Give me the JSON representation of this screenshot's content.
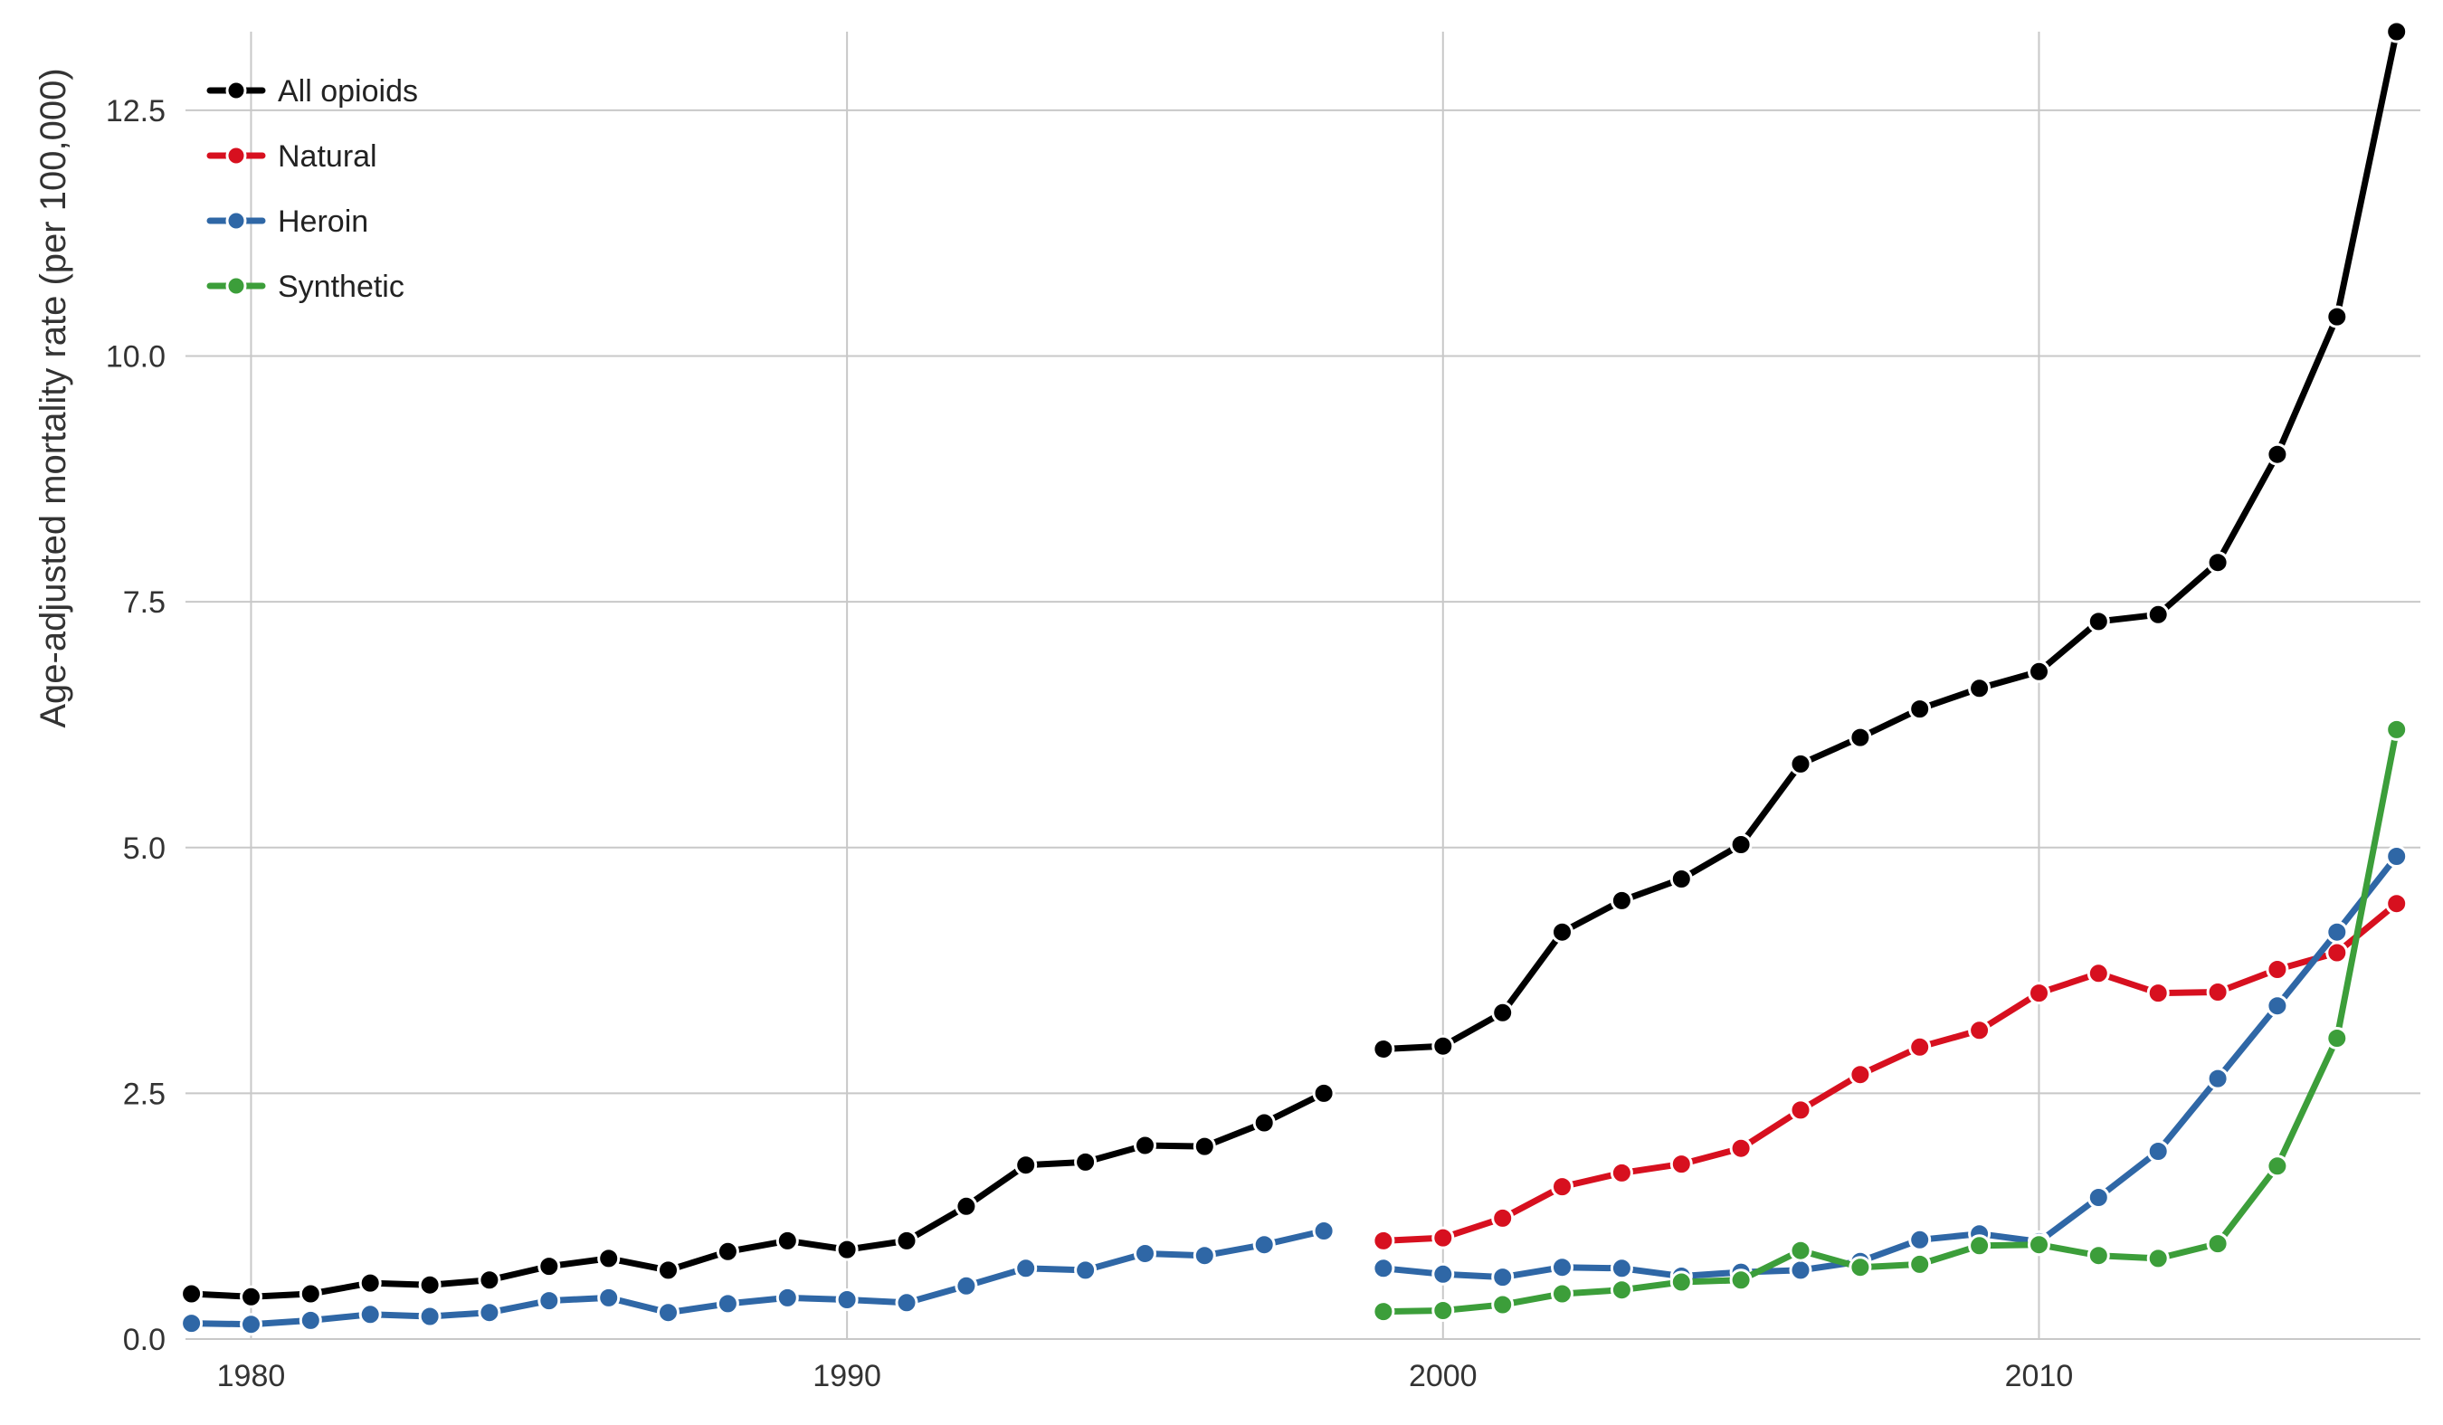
{
  "chart_data": {
    "type": "line",
    "title": "",
    "xlabel": "",
    "ylabel": "Age-adjusted mortality rate (per 100,000)",
    "xlim": [
      1978.9,
      2016.4
    ],
    "ylim": [
      0,
      13.3
    ],
    "x_ticks": [
      1980,
      1990,
      2000,
      2010
    ],
    "y_ticks": [
      0.0,
      2.5,
      5.0,
      7.5,
      10.0,
      12.5
    ],
    "x_tick_labels": [
      "1980",
      "1990",
      "2000",
      "2010"
    ],
    "y_tick_labels": [
      "0.0",
      "2.5",
      "5.0",
      "7.5",
      "10.0",
      "12.5"
    ],
    "grid": true,
    "legend_position": "top-left",
    "series": [
      {
        "name": "All opioids",
        "color": "#000000",
        "segments": [
          {
            "x": [
              1979,
              1980,
              1981,
              1982,
              1983,
              1984,
              1985,
              1986,
              1987,
              1988,
              1989,
              1990,
              1991,
              1992,
              1993,
              1994,
              1995,
              1996,
              1997,
              1998
            ],
            "y": [
              0.46,
              0.43,
              0.46,
              0.57,
              0.55,
              0.6,
              0.74,
              0.82,
              0.7,
              0.89,
              1.0,
              0.91,
              1.0,
              1.35,
              1.77,
              1.8,
              1.97,
              1.96,
              2.2,
              2.5
            ]
          },
          {
            "x": [
              1999,
              2000,
              2001,
              2002,
              2003,
              2004,
              2005,
              2006,
              2007,
              2008,
              2009,
              2010,
              2011,
              2012,
              2013,
              2014,
              2015,
              2016
            ],
            "y": [
              2.95,
              2.98,
              3.32,
              4.14,
              4.46,
              4.68,
              5.03,
              5.85,
              6.12,
              6.41,
              6.62,
              6.79,
              7.3,
              7.37,
              7.9,
              9.0,
              10.4,
              13.3
            ]
          }
        ]
      },
      {
        "name": "Natural",
        "color": "#d7101f",
        "segments": [
          {
            "x": [
              1999,
              2000,
              2001,
              2002,
              2003,
              2004,
              2005,
              2006,
              2007,
              2008,
              2009,
              2010,
              2011,
              2012,
              2013,
              2014,
              2015,
              2016
            ],
            "y": [
              1.0,
              1.03,
              1.23,
              1.55,
              1.69,
              1.78,
              1.94,
              2.33,
              2.69,
              2.97,
              3.14,
              3.52,
              3.72,
              3.52,
              3.53,
              3.76,
              3.93,
              4.43
            ]
          }
        ]
      },
      {
        "name": "Heroin",
        "color": "#2f67a6",
        "segments": [
          {
            "x": [
              1979,
              1980,
              1981,
              1982,
              1983,
              1984,
              1985,
              1986,
              1987,
              1988,
              1989,
              1990,
              1991,
              1992,
              1993,
              1994,
              1995,
              1996,
              1997,
              1998
            ],
            "y": [
              0.16,
              0.15,
              0.19,
              0.25,
              0.23,
              0.27,
              0.39,
              0.42,
              0.27,
              0.36,
              0.42,
              0.4,
              0.37,
              0.54,
              0.72,
              0.7,
              0.87,
              0.85,
              0.96,
              1.1
            ]
          },
          {
            "x": [
              1999,
              2000,
              2001,
              2002,
              2003,
              2004,
              2005,
              2006,
              2007,
              2008,
              2009,
              2010,
              2011,
              2012,
              2013,
              2014,
              2015,
              2016
            ],
            "y": [
              0.72,
              0.66,
              0.63,
              0.73,
              0.72,
              0.64,
              0.68,
              0.7,
              0.79,
              1.01,
              1.07,
              0.99,
              1.44,
              1.91,
              2.65,
              3.39,
              4.14,
              4.91
            ]
          }
        ]
      },
      {
        "name": "Synthetic",
        "color": "#3c9e3a",
        "segments": [
          {
            "x": [
              1999,
              2000,
              2001,
              2002,
              2003,
              2004,
              2005,
              2006,
              2007,
              2008,
              2009,
              2010,
              2011,
              2012,
              2013,
              2014,
              2015,
              2016
            ],
            "y": [
              0.28,
              0.29,
              0.35,
              0.46,
              0.5,
              0.58,
              0.6,
              0.9,
              0.73,
              0.76,
              0.95,
              0.96,
              0.85,
              0.82,
              0.97,
              1.76,
              3.06,
              6.2
            ]
          }
        ]
      }
    ]
  }
}
